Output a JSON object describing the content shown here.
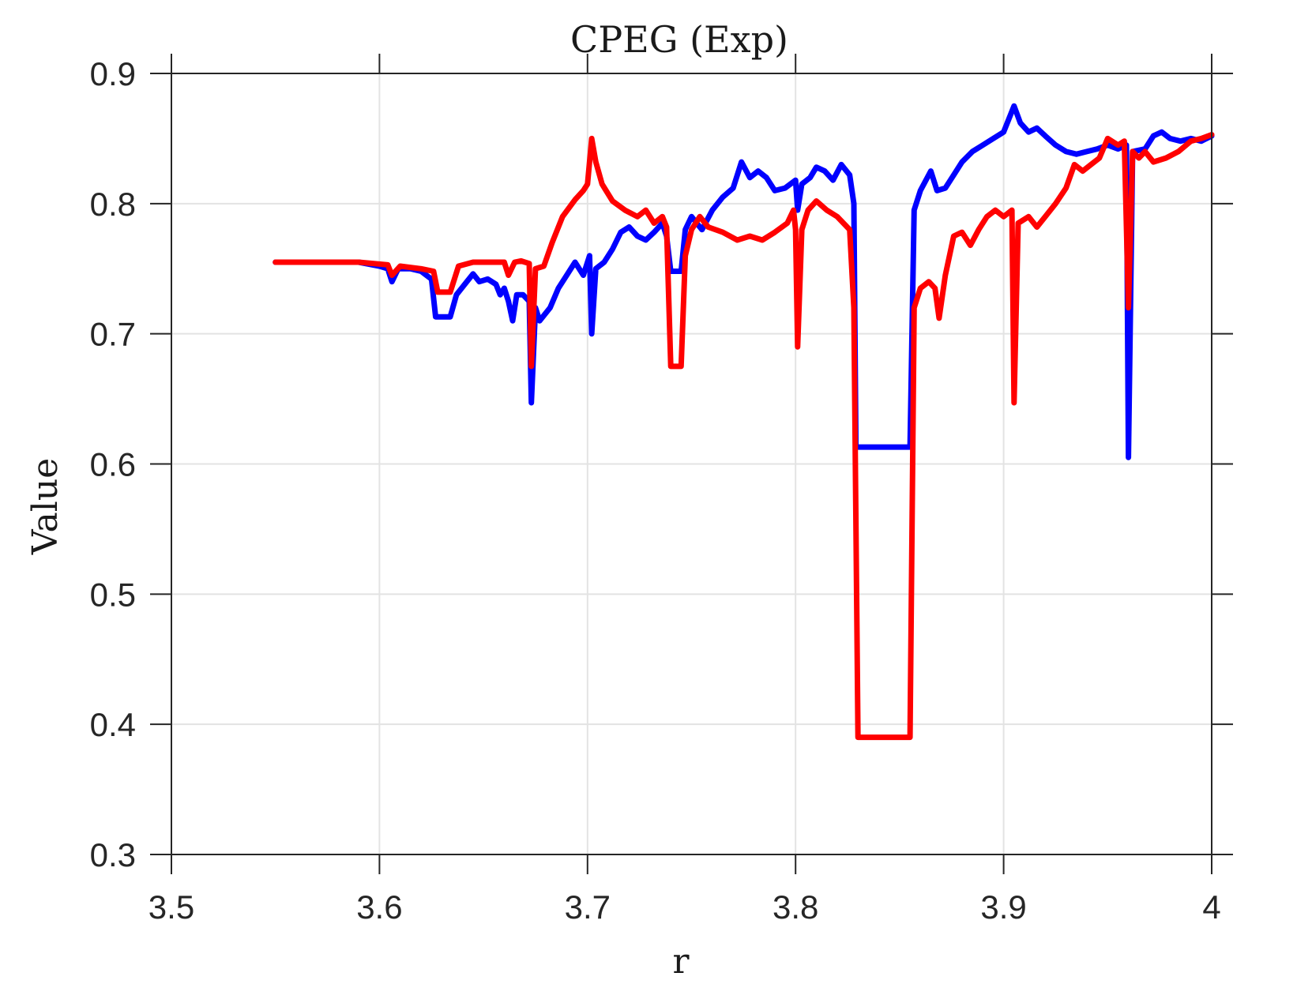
{
  "chart_data": {
    "type": "line",
    "title": "CPEG (Exp)",
    "xlabel": "r",
    "ylabel": "Value",
    "xlim": [
      3.5,
      4.0
    ],
    "ylim": [
      0.3,
      0.9
    ],
    "x_ticks": [
      "3.5",
      "3.6",
      "3.7",
      "3.8",
      "3.9",
      "4"
    ],
    "y_ticks": [
      "0.3",
      "0.4",
      "0.5",
      "0.6",
      "0.7",
      "0.8",
      "0.9"
    ],
    "grid": true,
    "legend": "none",
    "series": [
      {
        "color": "#0000ff",
        "points": [
          [
            3.55,
            0.755
          ],
          [
            3.59,
            0.755
          ],
          [
            3.6,
            0.752
          ],
          [
            3.604,
            0.75
          ],
          [
            3.606,
            0.74
          ],
          [
            3.609,
            0.75
          ],
          [
            3.615,
            0.75
          ],
          [
            3.62,
            0.748
          ],
          [
            3.625,
            0.742
          ],
          [
            3.627,
            0.713
          ],
          [
            3.634,
            0.713
          ],
          [
            3.637,
            0.73
          ],
          [
            3.642,
            0.74
          ],
          [
            3.645,
            0.746
          ],
          [
            3.648,
            0.74
          ],
          [
            3.652,
            0.742
          ],
          [
            3.656,
            0.738
          ],
          [
            3.658,
            0.73
          ],
          [
            3.66,
            0.735
          ],
          [
            3.662,
            0.725
          ],
          [
            3.664,
            0.71
          ],
          [
            3.666,
            0.73
          ],
          [
            3.669,
            0.73
          ],
          [
            3.672,
            0.725
          ],
          [
            3.673,
            0.647
          ],
          [
            3.675,
            0.72
          ],
          [
            3.677,
            0.71
          ],
          [
            3.682,
            0.72
          ],
          [
            3.686,
            0.735
          ],
          [
            3.69,
            0.745
          ],
          [
            3.694,
            0.755
          ],
          [
            3.698,
            0.745
          ],
          [
            3.701,
            0.76
          ],
          [
            3.702,
            0.7
          ],
          [
            3.704,
            0.75
          ],
          [
            3.708,
            0.755
          ],
          [
            3.712,
            0.765
          ],
          [
            3.716,
            0.778
          ],
          [
            3.72,
            0.782
          ],
          [
            3.724,
            0.775
          ],
          [
            3.728,
            0.772
          ],
          [
            3.732,
            0.778
          ],
          [
            3.736,
            0.785
          ],
          [
            3.738,
            0.775
          ],
          [
            3.74,
            0.748
          ],
          [
            3.745,
            0.748
          ],
          [
            3.747,
            0.78
          ],
          [
            3.75,
            0.79
          ],
          [
            3.755,
            0.78
          ],
          [
            3.76,
            0.795
          ],
          [
            3.765,
            0.805
          ],
          [
            3.77,
            0.812
          ],
          [
            3.774,
            0.832
          ],
          [
            3.778,
            0.82
          ],
          [
            3.782,
            0.825
          ],
          [
            3.786,
            0.82
          ],
          [
            3.79,
            0.81
          ],
          [
            3.795,
            0.812
          ],
          [
            3.8,
            0.818
          ],
          [
            3.801,
            0.795
          ],
          [
            3.803,
            0.815
          ],
          [
            3.807,
            0.82
          ],
          [
            3.81,
            0.828
          ],
          [
            3.814,
            0.825
          ],
          [
            3.818,
            0.818
          ],
          [
            3.822,
            0.83
          ],
          [
            3.826,
            0.822
          ],
          [
            3.828,
            0.8
          ],
          [
            3.829,
            0.613
          ],
          [
            3.855,
            0.613
          ],
          [
            3.857,
            0.795
          ],
          [
            3.86,
            0.81
          ],
          [
            3.865,
            0.825
          ],
          [
            3.868,
            0.81
          ],
          [
            3.872,
            0.812
          ],
          [
            3.876,
            0.822
          ],
          [
            3.88,
            0.832
          ],
          [
            3.885,
            0.84
          ],
          [
            3.89,
            0.845
          ],
          [
            3.895,
            0.85
          ],
          [
            3.9,
            0.855
          ],
          [
            3.905,
            0.875
          ],
          [
            3.908,
            0.862
          ],
          [
            3.912,
            0.855
          ],
          [
            3.916,
            0.858
          ],
          [
            3.92,
            0.852
          ],
          [
            3.925,
            0.845
          ],
          [
            3.93,
            0.84
          ],
          [
            3.935,
            0.838
          ],
          [
            3.94,
            0.84
          ],
          [
            3.945,
            0.842
          ],
          [
            3.95,
            0.845
          ],
          [
            3.955,
            0.842
          ],
          [
            3.959,
            0.845
          ],
          [
            3.96,
            0.605
          ],
          [
            3.962,
            0.84
          ],
          [
            3.968,
            0.842
          ],
          [
            3.972,
            0.852
          ],
          [
            3.976,
            0.855
          ],
          [
            3.98,
            0.85
          ],
          [
            3.985,
            0.848
          ],
          [
            3.99,
            0.85
          ],
          [
            3.995,
            0.848
          ],
          [
            4.0,
            0.852
          ]
        ]
      },
      {
        "color": "#ff0000",
        "points": [
          [
            3.55,
            0.755
          ],
          [
            3.59,
            0.755
          ],
          [
            3.604,
            0.753
          ],
          [
            3.606,
            0.745
          ],
          [
            3.61,
            0.752
          ],
          [
            3.62,
            0.75
          ],
          [
            3.626,
            0.748
          ],
          [
            3.628,
            0.732
          ],
          [
            3.634,
            0.732
          ],
          [
            3.638,
            0.752
          ],
          [
            3.645,
            0.755
          ],
          [
            3.655,
            0.755
          ],
          [
            3.66,
            0.755
          ],
          [
            3.662,
            0.745
          ],
          [
            3.665,
            0.755
          ],
          [
            3.668,
            0.756
          ],
          [
            3.672,
            0.754
          ],
          [
            3.673,
            0.675
          ],
          [
            3.675,
            0.75
          ],
          [
            3.679,
            0.752
          ],
          [
            3.683,
            0.77
          ],
          [
            3.688,
            0.79
          ],
          [
            3.694,
            0.803
          ],
          [
            3.698,
            0.81
          ],
          [
            3.7,
            0.815
          ],
          [
            3.702,
            0.85
          ],
          [
            3.704,
            0.832
          ],
          [
            3.707,
            0.815
          ],
          [
            3.712,
            0.802
          ],
          [
            3.718,
            0.795
          ],
          [
            3.724,
            0.79
          ],
          [
            3.728,
            0.795
          ],
          [
            3.732,
            0.785
          ],
          [
            3.736,
            0.79
          ],
          [
            3.738,
            0.782
          ],
          [
            3.74,
            0.675
          ],
          [
            3.745,
            0.675
          ],
          [
            3.747,
            0.76
          ],
          [
            3.75,
            0.78
          ],
          [
            3.754,
            0.79
          ],
          [
            3.758,
            0.782
          ],
          [
            3.765,
            0.778
          ],
          [
            3.772,
            0.772
          ],
          [
            3.778,
            0.775
          ],
          [
            3.784,
            0.772
          ],
          [
            3.79,
            0.778
          ],
          [
            3.796,
            0.785
          ],
          [
            3.799,
            0.795
          ],
          [
            3.8,
            0.78
          ],
          [
            3.801,
            0.69
          ],
          [
            3.803,
            0.78
          ],
          [
            3.806,
            0.795
          ],
          [
            3.81,
            0.802
          ],
          [
            3.815,
            0.795
          ],
          [
            3.82,
            0.79
          ],
          [
            3.826,
            0.78
          ],
          [
            3.828,
            0.72
          ],
          [
            3.83,
            0.39
          ],
          [
            3.855,
            0.39
          ],
          [
            3.857,
            0.72
          ],
          [
            3.86,
            0.735
          ],
          [
            3.864,
            0.74
          ],
          [
            3.867,
            0.735
          ],
          [
            3.869,
            0.712
          ],
          [
            3.872,
            0.745
          ],
          [
            3.876,
            0.775
          ],
          [
            3.88,
            0.778
          ],
          [
            3.884,
            0.768
          ],
          [
            3.888,
            0.78
          ],
          [
            3.892,
            0.79
          ],
          [
            3.896,
            0.795
          ],
          [
            3.9,
            0.79
          ],
          [
            3.904,
            0.795
          ],
          [
            3.905,
            0.647
          ],
          [
            3.907,
            0.785
          ],
          [
            3.912,
            0.79
          ],
          [
            3.916,
            0.782
          ],
          [
            3.92,
            0.79
          ],
          [
            3.925,
            0.8
          ],
          [
            3.93,
            0.812
          ],
          [
            3.934,
            0.83
          ],
          [
            3.938,
            0.825
          ],
          [
            3.942,
            0.83
          ],
          [
            3.946,
            0.835
          ],
          [
            3.95,
            0.85
          ],
          [
            3.955,
            0.845
          ],
          [
            3.958,
            0.848
          ],
          [
            3.96,
            0.72
          ],
          [
            3.962,
            0.84
          ],
          [
            3.965,
            0.835
          ],
          [
            3.968,
            0.84
          ],
          [
            3.972,
            0.832
          ],
          [
            3.978,
            0.835
          ],
          [
            3.984,
            0.84
          ],
          [
            3.99,
            0.848
          ],
          [
            3.995,
            0.85
          ],
          [
            4.0,
            0.853
          ]
        ]
      }
    ]
  }
}
